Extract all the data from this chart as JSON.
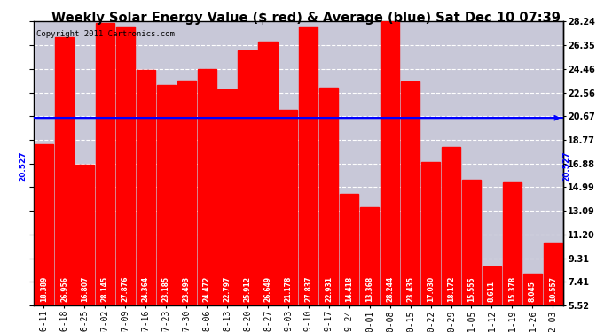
{
  "title": "Weekly Solar Energy Value ($ red) & Average (blue) Sat Dec 10 07:39",
  "copyright": "Copyright 2011 Cartronics.com",
  "average": 20.527,
  "average_label": "20.527",
  "bar_color": "#ff0000",
  "background_color": "#c8c8d8",
  "plot_bg_color": "#c8c8d8",
  "grid_color": "white",
  "avg_line_color": "blue",
  "categories": [
    "06-11",
    "06-18",
    "06-25",
    "07-02",
    "07-09",
    "07-16",
    "07-23",
    "07-30",
    "08-06",
    "08-13",
    "08-20",
    "08-27",
    "09-03",
    "09-10",
    "09-17",
    "09-24",
    "10-01",
    "10-08",
    "10-15",
    "10-22",
    "10-29",
    "11-05",
    "11-12",
    "11-19",
    "11-26",
    "12-03"
  ],
  "values": [
    18.389,
    26.956,
    16.807,
    28.145,
    27.876,
    24.364,
    23.185,
    23.493,
    24.472,
    22.797,
    25.912,
    26.649,
    21.178,
    27.837,
    22.931,
    14.418,
    13.368,
    28.244,
    23.435,
    17.03,
    18.172,
    15.555,
    8.611,
    15.378,
    8.045,
    10.557
  ],
  "ylim_min": 5.52,
  "ylim_max": 28.24,
  "yticks": [
    5.52,
    7.41,
    9.31,
    11.2,
    13.09,
    14.99,
    16.88,
    18.77,
    20.67,
    22.56,
    24.46,
    26.35,
    28.24
  ],
  "title_fontsize": 10.5,
  "tick_fontsize": 7,
  "bar_label_fontsize": 5.5,
  "copyright_fontsize": 6.5,
  "avg_label_fontsize": 6.5
}
